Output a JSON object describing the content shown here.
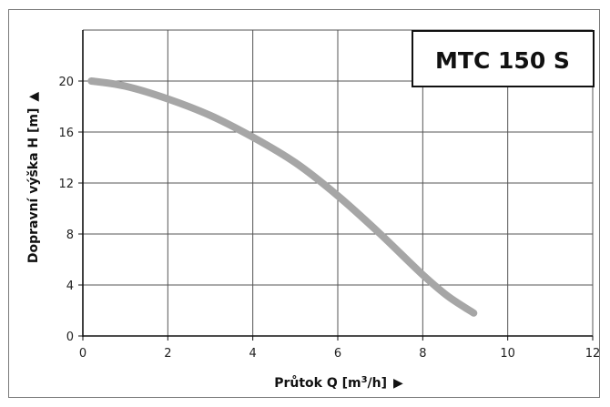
{
  "chart_data": {
    "type": "line",
    "model_label": "MTC 150 S",
    "xlabel": "Průtok Q [m³/h]",
    "xlabel_arrow": "▶",
    "ylabel": "Dopravní výška H [m]",
    "ylabel_arrow": "▲",
    "xlim": [
      0,
      12
    ],
    "ylim": [
      0,
      24
    ],
    "x_ticks": [
      0,
      2,
      4,
      6,
      8,
      10,
      12
    ],
    "y_ticks": [
      0,
      4,
      8,
      12,
      16,
      20
    ],
    "grid": true,
    "series": [
      {
        "x": [
          0.2,
          1.0,
          2.0,
          3.0,
          4.0,
          5.0,
          6.0,
          7.0,
          8.0,
          8.6,
          9.2
        ],
        "y": [
          20.0,
          19.6,
          18.6,
          17.3,
          15.6,
          13.6,
          11.0,
          8.0,
          4.8,
          3.1,
          1.8
        ],
        "color": "#a6a6a6"
      }
    ]
  }
}
